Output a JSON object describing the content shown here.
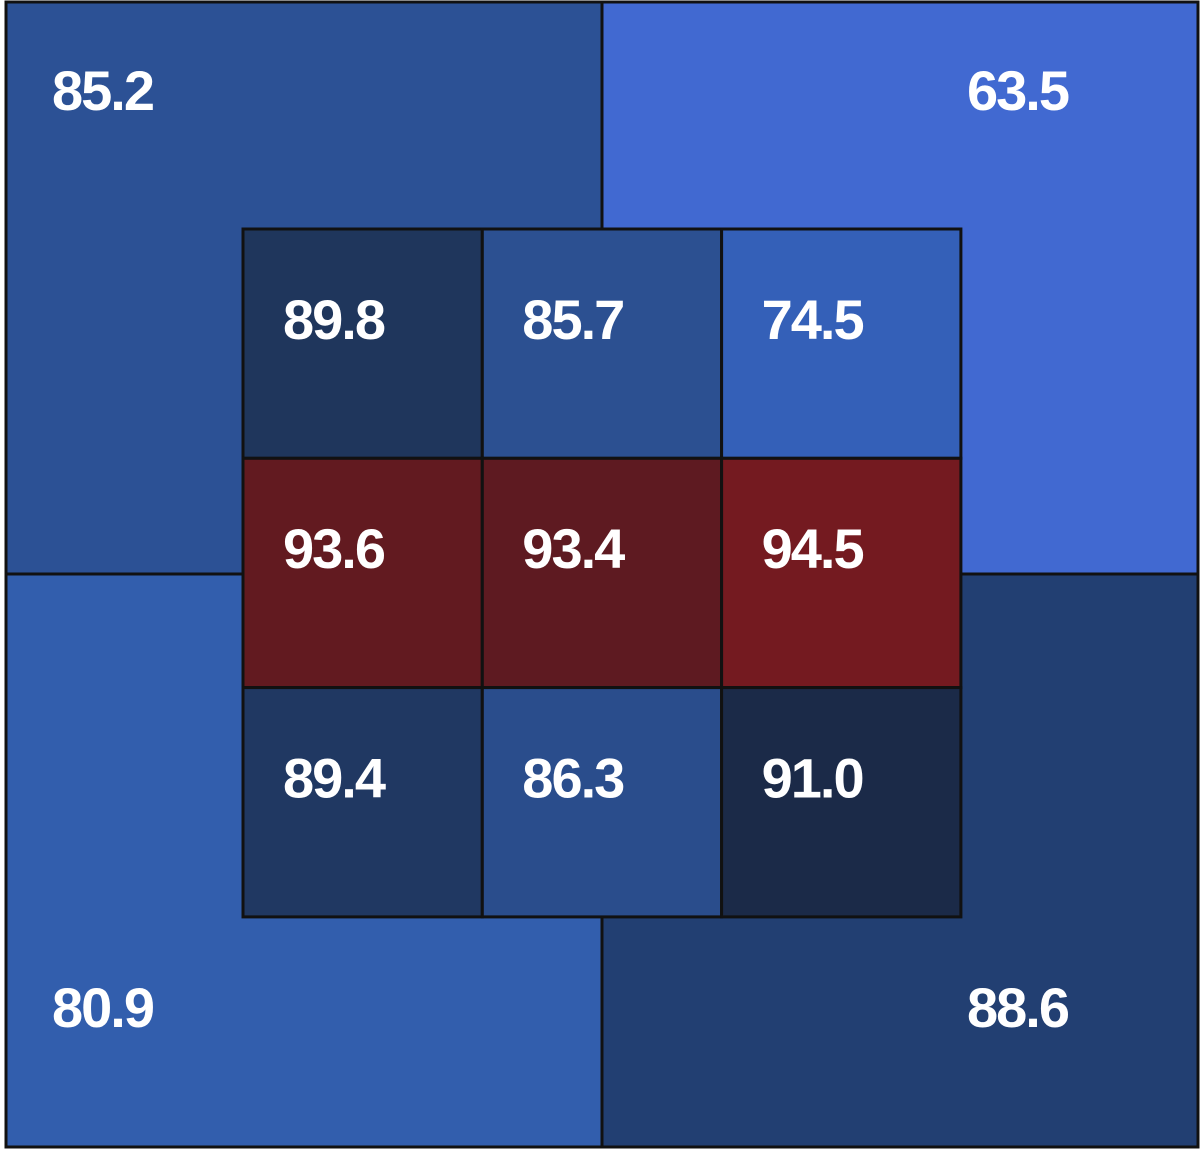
{
  "chart_data": {
    "type": "heatmap",
    "outer_zones": {
      "values": [
        85.2,
        63.5,
        80.9,
        88.6
      ],
      "value_labels": [
        "85.2",
        "63.5",
        "80.9",
        "88.6"
      ],
      "colors": [
        "#2c5195",
        "#4169d1",
        "#325ead",
        "#223f72"
      ]
    },
    "inner_zones": {
      "values": [
        89.8,
        85.7,
        74.5,
        93.6,
        93.4,
        94.5,
        89.4,
        86.3,
        91.0
      ],
      "value_labels": [
        "89.8",
        "85.7",
        "74.5",
        "93.6",
        "93.4",
        "94.5",
        "89.4",
        "86.3",
        "91.0"
      ],
      "colors": [
        "#1f365c",
        "#2c5091",
        "#3460b8",
        "#621a20",
        "#5e1a21",
        "#741a20",
        "#203862",
        "#2a4d8c",
        "#1b2a48"
      ]
    }
  }
}
